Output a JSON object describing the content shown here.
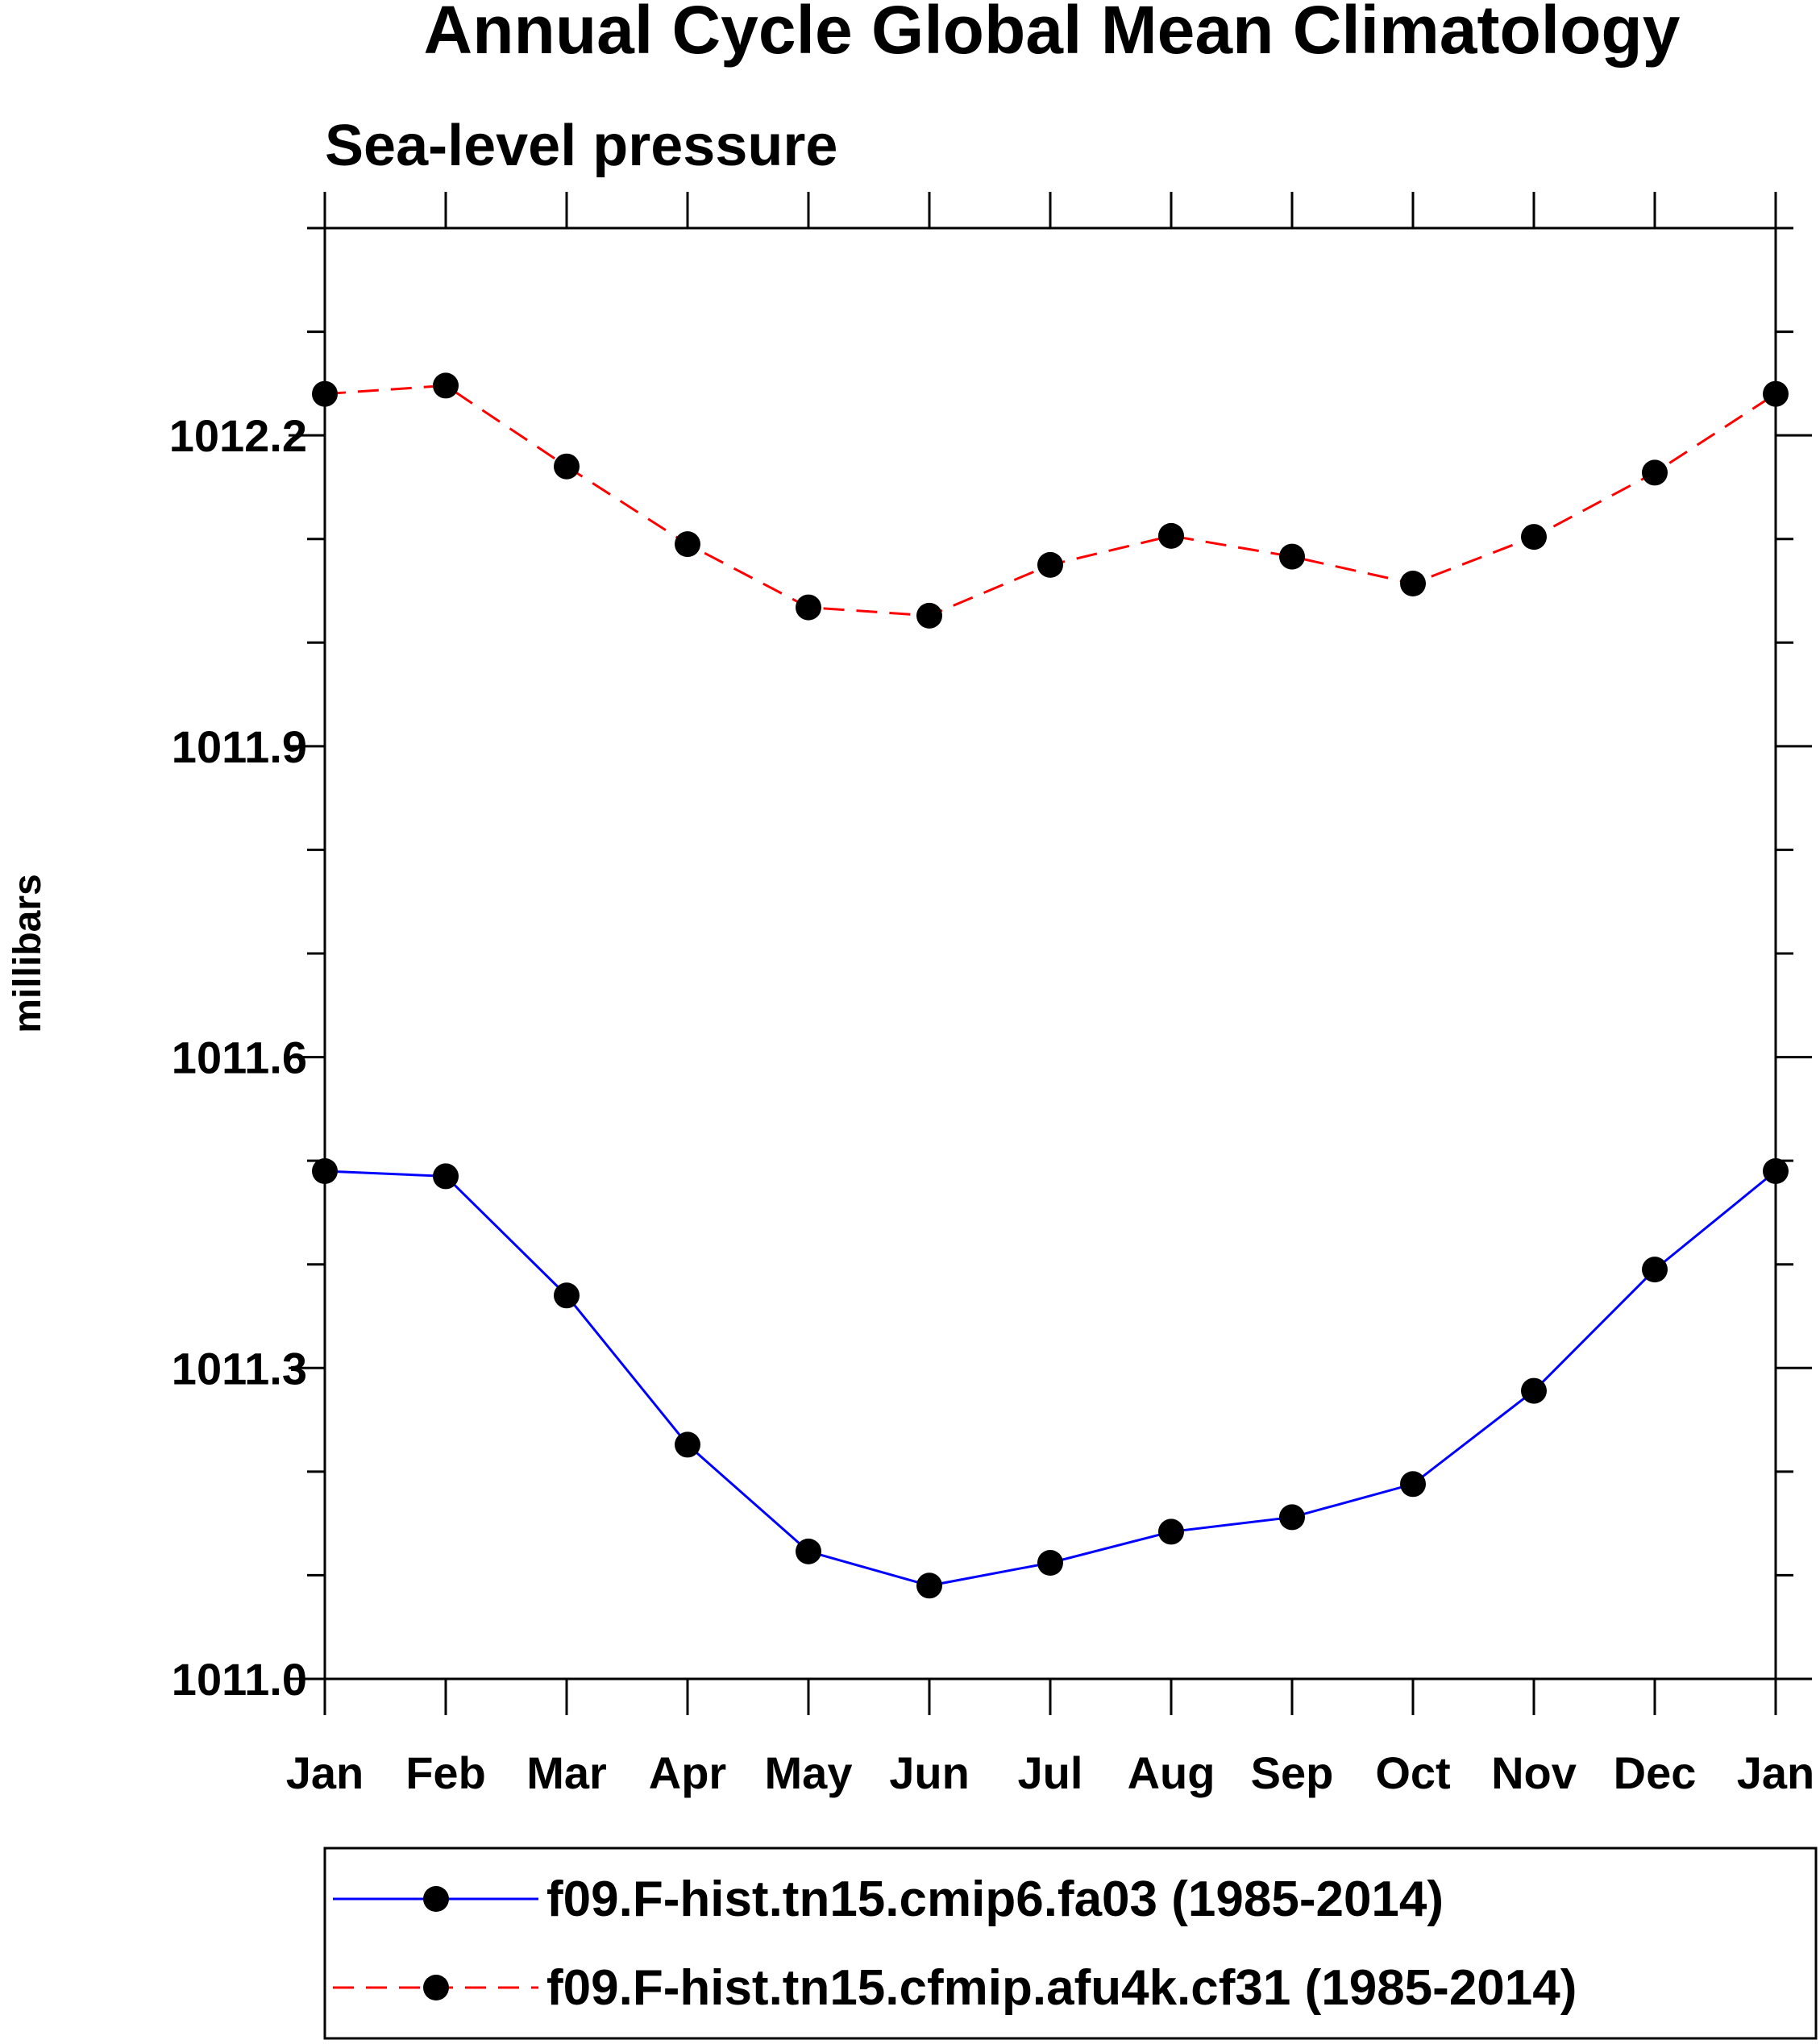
{
  "chart_data": {
    "type": "line",
    "title": "Annual Cycle Global Mean Climatology",
    "subtitle": "Sea-level pressure",
    "ylabel": "millibars",
    "xlabel": "",
    "categories": [
      "Jan",
      "Feb",
      "Mar",
      "Apr",
      "May",
      "Jun",
      "Jul",
      "Aug",
      "Sep",
      "Oct",
      "Nov",
      "Dec",
      "Jan"
    ],
    "ylim": [
      1011.0,
      1012.4
    ],
    "yticks": [
      "1011.0",
      "1011.3",
      "1011.6",
      "1011.9",
      "1012.2"
    ],
    "grid": false,
    "legend_position": "bottom",
    "series": [
      {
        "name": "f09.F-hist.tn15.cmip6.fa03 (1985-2014)",
        "color": "#0000ff",
        "line_style": "solid",
        "marker": "filled-circle",
        "values": [
          1011.49,
          1011.485,
          1011.37,
          1011.226,
          1011.123,
          1011.09,
          1011.112,
          1011.142,
          1011.156,
          1011.188,
          1011.278,
          1011.395,
          1011.49
        ]
      },
      {
        "name": "f09.F-hist.tn15.cfmip.afu4k.cf31 (1985-2014)",
        "color": "#ff0000",
        "line_style": "dashed",
        "marker": "filled-circle",
        "values": [
          1012.24,
          1012.248,
          1012.17,
          1012.095,
          1012.034,
          1012.026,
          1012.075,
          1012.103,
          1012.083,
          1012.057,
          1012.102,
          1012.164,
          1012.24
        ]
      }
    ]
  }
}
